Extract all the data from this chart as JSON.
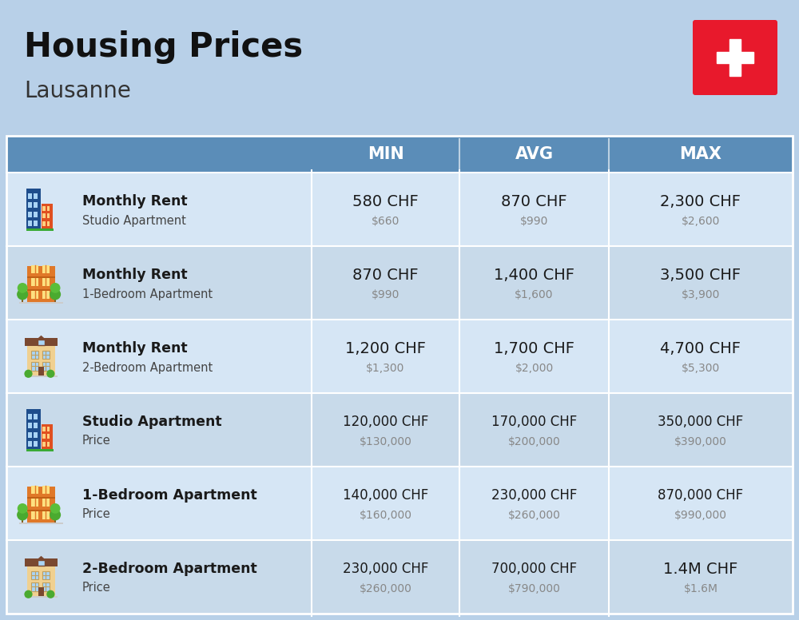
{
  "title": "Housing Prices",
  "subtitle": "Lausanne",
  "bg_color": "#b8d0e8",
  "header_bg": "#5b8db8",
  "header_text_color": "#ffffff",
  "row_bg_even": "#d6e6f5",
  "row_bg_odd": "#c8daea",
  "text_dark": "#1a1a1a",
  "text_gray": "#888888",
  "col_headers": [
    "MIN",
    "AVG",
    "MAX"
  ],
  "rows": [
    {
      "bold_label": "Monthly Rent",
      "sub_label": "Studio Apartment",
      "min_chf": "580 CHF",
      "min_usd": "$660",
      "avg_chf": "870 CHF",
      "avg_usd": "$990",
      "max_chf": "2,300 CHF",
      "max_usd": "$2,600",
      "icon_type": "studio_blue"
    },
    {
      "bold_label": "Monthly Rent",
      "sub_label": "1-Bedroom Apartment",
      "min_chf": "870 CHF",
      "min_usd": "$990",
      "avg_chf": "1,400 CHF",
      "avg_usd": "$1,600",
      "max_chf": "3,500 CHF",
      "max_usd": "$3,900",
      "icon_type": "apt_orange"
    },
    {
      "bold_label": "Monthly Rent",
      "sub_label": "2-Bedroom Apartment",
      "min_chf": "1,200 CHF",
      "min_usd": "$1,300",
      "avg_chf": "1,700 CHF",
      "avg_usd": "$2,000",
      "max_chf": "4,700 CHF",
      "max_usd": "$5,300",
      "icon_type": "house_beige"
    },
    {
      "bold_label": "Studio Apartment",
      "sub_label": "Price",
      "min_chf": "120,000 CHF",
      "min_usd": "$130,000",
      "avg_chf": "170,000 CHF",
      "avg_usd": "$200,000",
      "max_chf": "350,000 CHF",
      "max_usd": "$390,000",
      "icon_type": "studio_blue"
    },
    {
      "bold_label": "1-Bedroom Apartment",
      "sub_label": "Price",
      "min_chf": "140,000 CHF",
      "min_usd": "$160,000",
      "avg_chf": "230,000 CHF",
      "avg_usd": "$260,000",
      "max_chf": "870,000 CHF",
      "max_usd": "$990,000",
      "icon_type": "apt_orange"
    },
    {
      "bold_label": "2-Bedroom Apartment",
      "sub_label": "Price",
      "min_chf": "230,000 CHF",
      "min_usd": "$260,000",
      "avg_chf": "700,000 CHF",
      "avg_usd": "$790,000",
      "max_chf": "1.4M CHF",
      "max_usd": "$1.6M",
      "icon_type": "house_beige"
    }
  ]
}
